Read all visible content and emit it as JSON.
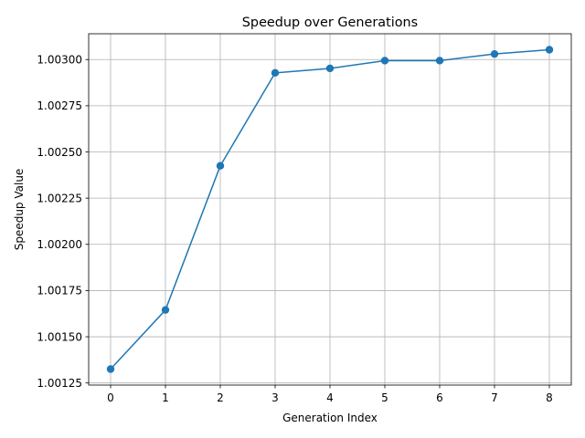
{
  "chart_data": {
    "type": "line",
    "title": "Speedup over Generations",
    "xlabel": "Generation Index",
    "ylabel": "Speedup Value",
    "x": [
      0,
      1,
      2,
      3,
      4,
      5,
      6,
      7,
      8
    ],
    "series": [
      {
        "values": [
          1.001325,
          1.001645,
          1.002425,
          1.002928,
          1.002952,
          1.002994,
          1.002994,
          1.00303,
          1.003053
        ],
        "color": "#1f77b4",
        "marker": "circle"
      }
    ],
    "xlim": [
      -0.4,
      8.4
    ],
    "ylim": [
      1.0012386,
      1.0031394
    ],
    "xticks": [
      0,
      1,
      2,
      3,
      4,
      5,
      6,
      7,
      8
    ],
    "xtick_labels": [
      "0",
      "1",
      "2",
      "3",
      "4",
      "5",
      "6",
      "7",
      "8"
    ],
    "yticks": [
      1.00125,
      1.0015,
      1.00175,
      1.002,
      1.00225,
      1.0025,
      1.00275,
      1.003
    ],
    "ytick_labels": [
      "1.00125",
      "1.00150",
      "1.00175",
      "1.00200",
      "1.00225",
      "1.00250",
      "1.00275",
      "1.00300"
    ],
    "grid": true,
    "legend": "none"
  }
}
